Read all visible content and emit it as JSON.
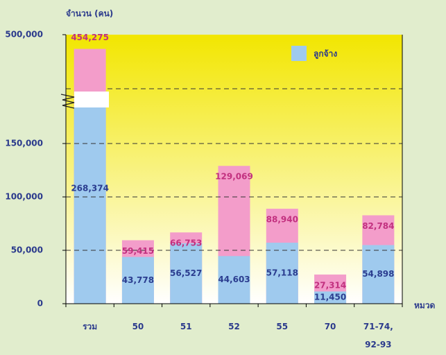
{
  "chart_data": {
    "type": "bar",
    "title": "จำนวน (คน)",
    "x_label": "หมวด",
    "categories": [
      "รวม",
      "50",
      "51",
      "52",
      "55",
      "70",
      "71-74,\n92-93"
    ],
    "series": [
      {
        "name": "ลูกจ้าง",
        "color": "#9fcaee",
        "label_color": "#2b3d8f",
        "values": [
          268374,
          43778,
          56527,
          44603,
          57118,
          11450,
          54898
        ],
        "value_labels": [
          "268,374",
          "43,778",
          "56,527",
          "44,603",
          "57,118",
          "11,450",
          "54,898"
        ]
      },
      {
        "color": "#f39dca",
        "label_color": "#c2307f",
        "values": [
          454275,
          59415,
          66753,
          129069,
          88940,
          27314,
          82784
        ],
        "value_labels": [
          "454,275",
          "59,415",
          "66,753",
          "129,069",
          "88,940",
          "27,314",
          "82,784"
        ]
      }
    ],
    "ylim": [
      0,
      500000
    ],
    "yticks": [
      {
        "value": 0,
        "label": "0"
      },
      {
        "value": 50000,
        "label": "50,000"
      },
      {
        "value": 100000,
        "label": "100,000"
      },
      {
        "value": 150000,
        "label": "150,000"
      },
      {
        "value": 500000,
        "label": "500,000"
      }
    ],
    "grid": true,
    "legend": "top-right"
  }
}
